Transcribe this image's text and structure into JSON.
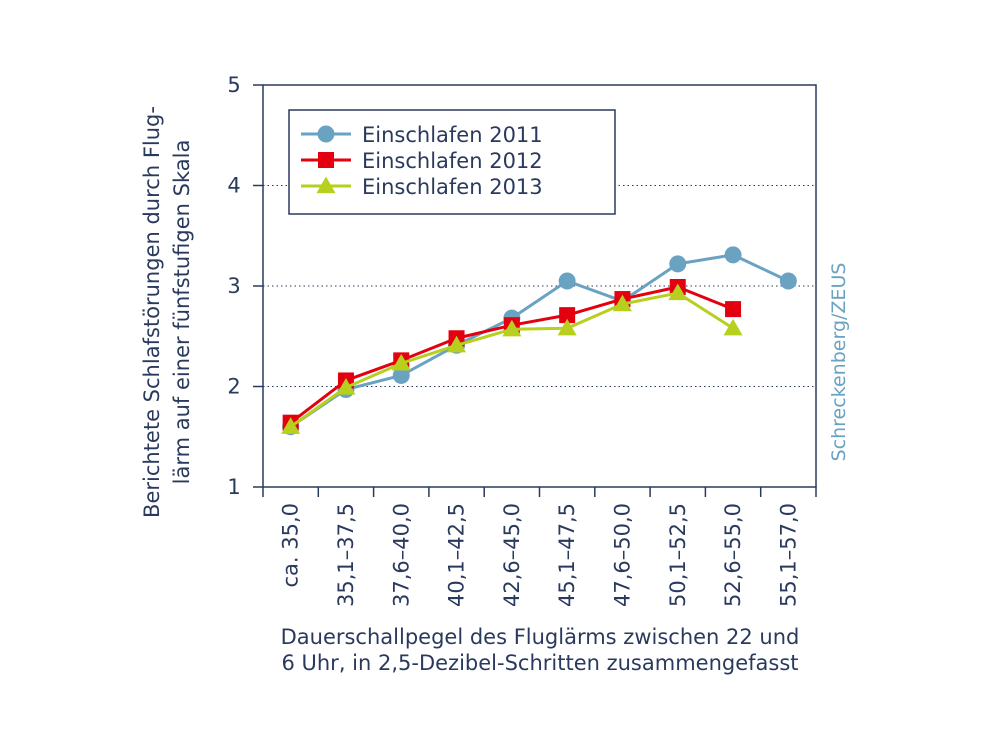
{
  "chart_data": {
    "type": "line",
    "categories": [
      "ca. 35,0",
      "35,1–37,5",
      "37,6–40,0",
      "40,1–42,5",
      "42,6–45,0",
      "45,1–47,5",
      "47,6–50,0",
      "50,1–52,5",
      "52,6–55,0",
      "55,1–57,0"
    ],
    "series": [
      {
        "name": "Einschlafen 2011",
        "marker": "circle",
        "color": "#6aa3c2",
        "values": [
          1.6,
          1.97,
          2.11,
          2.41,
          2.68,
          3.05,
          2.85,
          3.22,
          3.31,
          3.05
        ]
      },
      {
        "name": "Einschlafen 2012",
        "marker": "square",
        "color": "#e3000f",
        "values": [
          1.64,
          2.06,
          2.26,
          2.48,
          2.61,
          2.71,
          2.87,
          2.99,
          2.77,
          null
        ]
      },
      {
        "name": "Einschlafen 2013",
        "marker": "triangle",
        "color": "#b7cf1d",
        "values": [
          1.6,
          1.99,
          2.23,
          2.41,
          2.57,
          2.58,
          2.82,
          2.93,
          2.58,
          null
        ]
      }
    ],
    "ylim": [
      1,
      5
    ],
    "yticks": [
      "1",
      "2",
      "3",
      "4",
      "5"
    ],
    "ylabel_line1": "Berichtete Schlafstörungen durch Flug-",
    "ylabel_line2": "lärm auf einer fünfstufigen Skala",
    "xlabel_line1": "Dauerschallpegel des Fluglärms zwischen 22 und",
    "xlabel_line2": "6 Uhr, in 2,5-Dezibel-Schritten zusammengefasst",
    "grid": "horizontal dotted",
    "legend_position": "top-left"
  },
  "credit": "Schreckenberg/ZEUS",
  "colors": {
    "axis": "#2a3a5e",
    "credit": "#6aa3c2"
  }
}
